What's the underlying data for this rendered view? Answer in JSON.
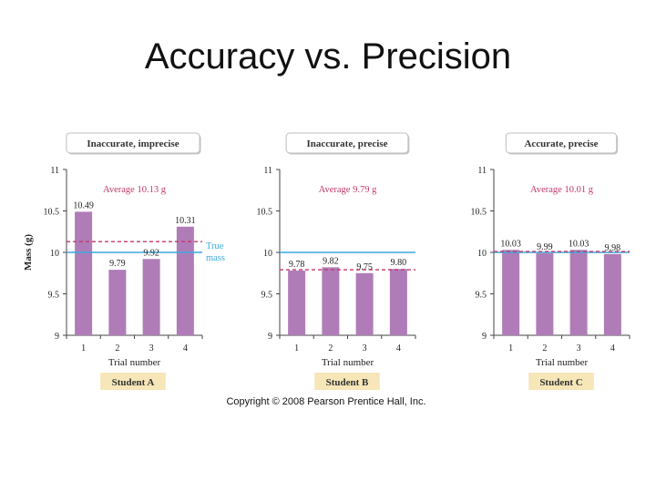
{
  "slide": {
    "title": "Accuracy vs. Precision",
    "copyright": "Copyright © 2008 Pearson Prentice Hall, Inc."
  },
  "colors": {
    "bar": "#b07cb8",
    "true_line": "#3aa9dc",
    "average_line": "#c0396b",
    "average_text": "#c0396b",
    "student_badge": "#f6e6b8"
  },
  "shared_ylabel": "Mass (g)",
  "true_mass_label": [
    "True",
    "mass"
  ],
  "chart_data": [
    {
      "type": "bar",
      "heading": "Inaccurate, imprecise",
      "categories": [
        "1",
        "2",
        "3",
        "4"
      ],
      "values": [
        10.49,
        9.79,
        9.92,
        10.31
      ],
      "value_labels": [
        "10.49",
        "9.79",
        "9.92",
        "10.31"
      ],
      "average_label": "Average 10.13 g",
      "average": 10.13,
      "true_mass": 10,
      "ylim": [
        9,
        11
      ],
      "yticks": [
        "9",
        "9.5",
        "10",
        "10.5",
        "11"
      ],
      "xlabel": "Trial number",
      "student": "Student A"
    },
    {
      "type": "bar",
      "heading": "Inaccurate, precise",
      "categories": [
        "1",
        "2",
        "3",
        "4"
      ],
      "values": [
        9.78,
        9.82,
        9.75,
        9.8
      ],
      "value_labels": [
        "9.78",
        "9.82",
        "9.75",
        "9.80"
      ],
      "average_label": "Average 9.79 g",
      "average": 9.79,
      "true_mass": 10,
      "ylim": [
        9,
        11
      ],
      "yticks": [
        "9",
        "9.5",
        "10",
        "10.5",
        "11"
      ],
      "xlabel": "Trial number",
      "student": "Student B"
    },
    {
      "type": "bar",
      "heading": "Accurate, precise",
      "categories": [
        "1",
        "2",
        "3",
        "4"
      ],
      "values": [
        10.03,
        9.99,
        10.03,
        9.98
      ],
      "value_labels": [
        "10.03",
        "9.99",
        "10.03",
        "9.98"
      ],
      "average_label": "Average 10.01 g",
      "average": 10.01,
      "true_mass": 10,
      "ylim": [
        9,
        11
      ],
      "yticks": [
        "9",
        "9.5",
        "10",
        "10.5",
        "11"
      ],
      "xlabel": "Trial number",
      "student": "Student C"
    }
  ]
}
